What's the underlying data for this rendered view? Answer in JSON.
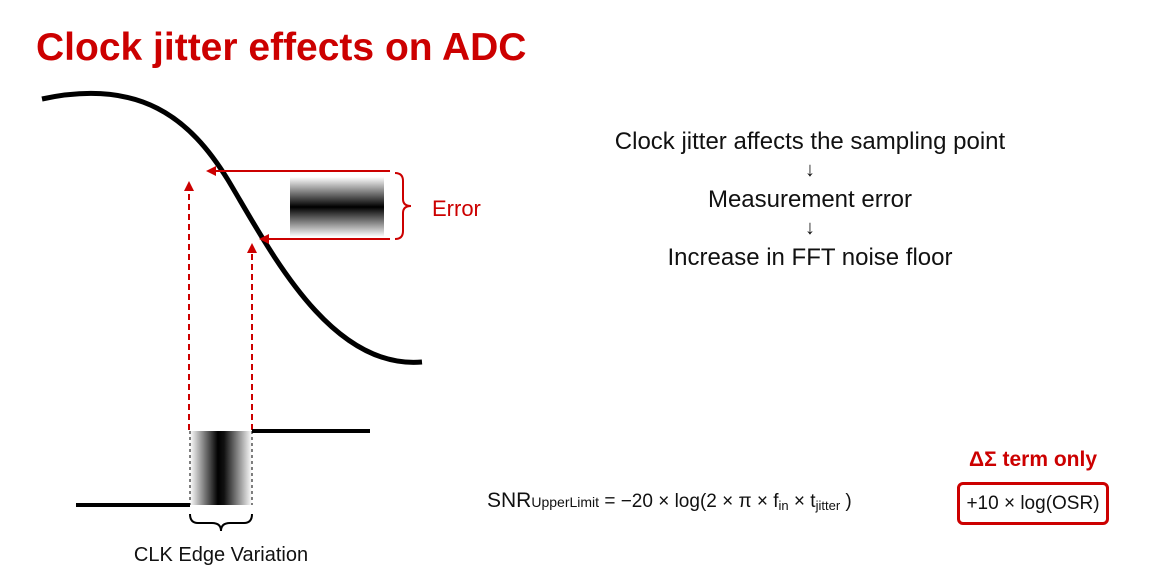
{
  "title": "Clock jitter effects on ADC",
  "diagram": {
    "error_label": "Error",
    "clk_edge_label": "CLK Edge Variation"
  },
  "flow": {
    "line1": "Clock jitter affects the sampling point",
    "arrow": "↓",
    "line2": "Measurement error",
    "line3": "Increase in FFT noise floor"
  },
  "formula": {
    "snr": "SNR",
    "snr_subscript": "UpperLimit",
    "part1": " = −20 × log(2 × π × f",
    "f_sub": "in",
    "part2": " × t",
    "t_sub": "jitter",
    "part3": " )",
    "boxed_term": "+10 × log(OSR)",
    "boxed_label": "ΔΣ term only"
  },
  "colors": {
    "accent": "#cc0000",
    "text": "#111111"
  }
}
